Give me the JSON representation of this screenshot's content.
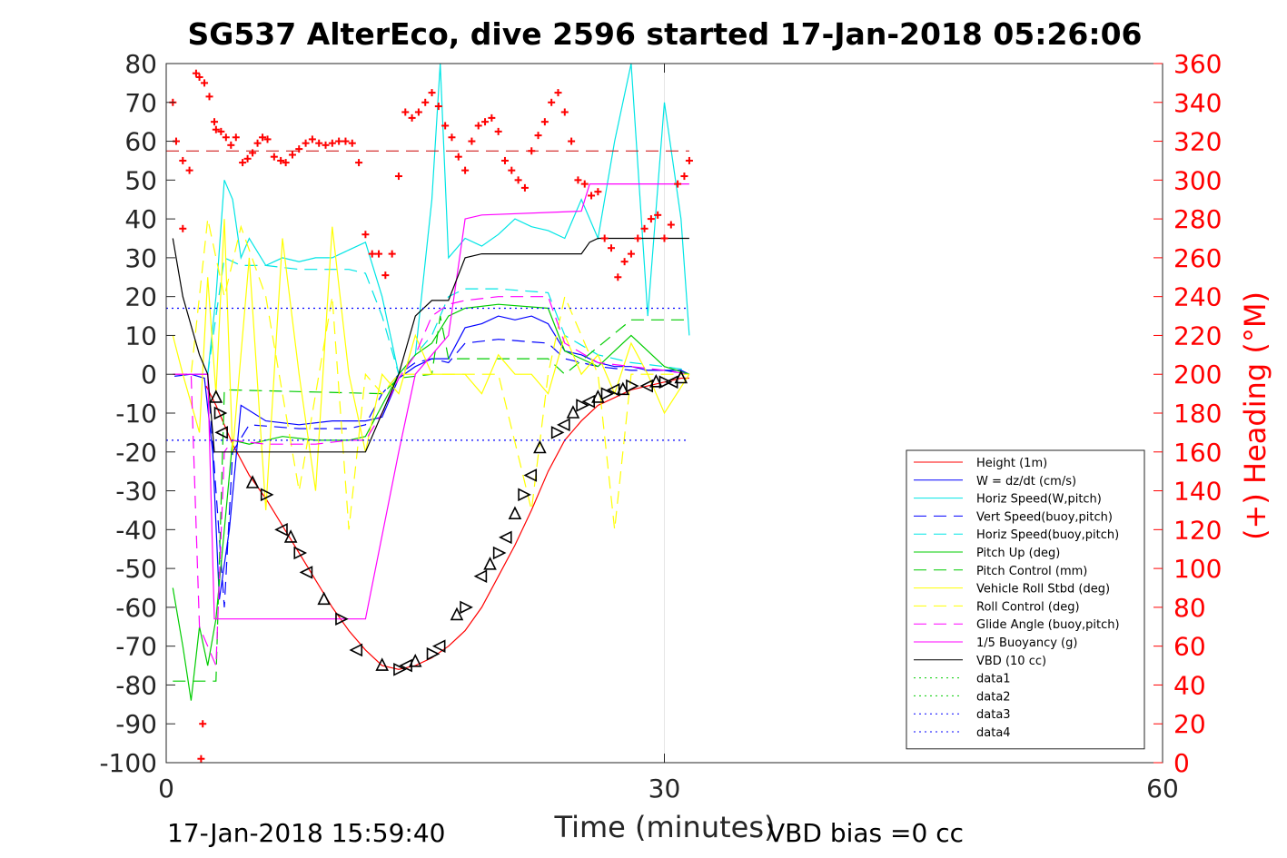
{
  "chart_data": {
    "type": "line",
    "title": "SG537 AlterEco, dive 2596 started 17-Jan-2018 05:26:06",
    "xlabel": "Time (minutes)",
    "ylabel_right": "(+) Heading (°M)",
    "xlim": [
      0,
      60
    ],
    "ylim": [
      -100,
      80
    ],
    "ylim_right": [
      0,
      360
    ],
    "x_ticks": [
      "0",
      "30",
      "60"
    ],
    "y_ticks": [
      "80",
      "70",
      "60",
      "50",
      "40",
      "30",
      "20",
      "10",
      "0",
      "-10",
      "-20",
      "-30",
      "-40",
      "-50",
      "-60",
      "-70",
      "-80",
      "-90",
      "-100"
    ],
    "y_ticks_right": [
      "360",
      "340",
      "320",
      "300",
      "280",
      "260",
      "240",
      "220",
      "200",
      "180",
      "160",
      "140",
      "120",
      "100",
      "80",
      "60",
      "40",
      "20",
      "0"
    ],
    "grid": "x only at 30",
    "legend_position": "bottom-right inside",
    "footer_left": "17-Jan-2018 15:59:40",
    "footer_right": "VBD bias =0 cc",
    "series": [
      {
        "name": "Height (1m)",
        "color": "#ff0000",
        "style": "solid",
        "x": [
          2.4,
          3.0,
          4.0,
          5.0,
          6.0,
          7.0,
          8.0,
          9.0,
          10.0,
          11.0,
          12.0,
          13.0,
          14.0,
          15.0,
          16.0,
          17.0,
          18.0,
          19.0,
          20.0,
          21.0,
          22.0,
          23.0,
          24.0,
          25.0,
          26.0,
          27.0,
          28.0,
          29.0,
          30.0,
          31.0,
          31.5
        ],
        "values": [
          -3,
          -8,
          -18,
          -26,
          -32,
          -39,
          -46,
          -53,
          -60,
          -66,
          -71,
          -75,
          -76,
          -75,
          -73,
          -70,
          -66,
          -60,
          -52,
          -44,
          -35,
          -25,
          -17,
          -12,
          -8,
          -6,
          -4,
          -3,
          -2,
          -1,
          -1
        ]
      },
      {
        "name": "W = dz/dt (cm/s)",
        "color": "#0000ff",
        "style": "solid",
        "x": [
          0.5,
          1.5,
          2.3,
          2.8,
          3.2,
          3.8,
          4.5,
          6,
          8,
          10,
          12,
          13,
          14,
          15,
          16,
          17,
          18,
          19,
          20,
          21,
          22,
          23,
          24,
          25,
          26,
          27,
          28,
          29,
          30,
          31,
          31.5
        ],
        "values": [
          -0.5,
          0,
          -1,
          -20,
          -58,
          -40,
          -8,
          -12,
          -13,
          -12,
          -12,
          -11,
          -1,
          2,
          4,
          4,
          12,
          13,
          15,
          14,
          15,
          13,
          6,
          5,
          3,
          2,
          2,
          1,
          1,
          1,
          0
        ]
      },
      {
        "name": "Horiz Speed(W,pitch)",
        "color": "#00e5e5",
        "style": "solid",
        "x": [
          2.5,
          3.0,
          3.5,
          4.0,
          4.5,
          5,
          6,
          7,
          8,
          9,
          10,
          11,
          12,
          13,
          14,
          15,
          16,
          16.5,
          17,
          18,
          19,
          20,
          21,
          22,
          23,
          24,
          25,
          26,
          27,
          28,
          29,
          30,
          31,
          31.5
        ],
        "values": [
          0,
          20,
          50,
          45,
          30,
          35,
          28,
          30,
          29,
          30,
          30,
          32,
          34,
          20,
          0,
          5,
          45,
          80,
          30,
          35,
          33,
          36,
          40,
          38,
          37,
          35,
          45,
          35,
          60,
          80,
          15,
          70,
          40,
          10
        ]
      },
      {
        "name": "Vert Speed(buoy,pitch)",
        "color": "#0000ff",
        "style": "dashed",
        "x": [
          0.5,
          2.5,
          3.0,
          3.5,
          4.0,
          5,
          8,
          11,
          12,
          13,
          14,
          15,
          16,
          17,
          18,
          20,
          23,
          24,
          26,
          28,
          30,
          31.5
        ],
        "values": [
          0,
          0,
          -30,
          -60,
          -20,
          -13,
          -14,
          -14,
          -13,
          -5,
          0,
          3,
          4,
          3,
          8,
          9,
          8,
          4,
          2,
          1,
          1,
          0
        ]
      },
      {
        "name": "Horiz Speed(buoy,pitch)",
        "color": "#00e5e5",
        "style": "dashed",
        "x": [
          2.5,
          3.5,
          4.5,
          6,
          8,
          11,
          12,
          13,
          14,
          15,
          16,
          17,
          18,
          20,
          23,
          24,
          26,
          28,
          30,
          31.5
        ],
        "values": [
          0,
          30,
          28,
          28,
          27,
          27,
          26,
          15,
          0,
          5,
          10,
          20,
          22,
          22,
          21,
          10,
          5,
          3,
          2,
          1
        ]
      },
      {
        "name": "Pitch Up (deg)",
        "color": "#00cc00",
        "style": "solid",
        "x": [
          0.4,
          1.0,
          1.5,
          2.0,
          2.5,
          3.0,
          3.5,
          4.0,
          5,
          7,
          9,
          11,
          12,
          13,
          14,
          15,
          16,
          17,
          18,
          20,
          23,
          24,
          26,
          28,
          30,
          31.5
        ],
        "values": [
          -55,
          -70,
          -84,
          -65,
          -75,
          -63,
          -40,
          -17,
          -18,
          -16,
          -17,
          -17,
          -16,
          -8,
          0,
          5,
          8,
          15,
          17,
          18,
          17,
          6,
          2,
          10,
          2,
          0
        ]
      },
      {
        "name": "Pitch Control (mm)",
        "color": "#00cc00",
        "style": "dashed",
        "x": [
          0.4,
          3.0,
          3.5,
          13,
          14,
          16,
          16.5,
          17,
          23,
          24,
          28,
          31.5
        ],
        "values": [
          -79,
          -79,
          -4,
          -5,
          -1,
          0,
          15,
          4,
          4,
          0,
          14,
          14
        ]
      },
      {
        "name": "Vehicle Roll Stbd (deg)",
        "color": "#ffff00",
        "style": "solid",
        "x": [
          0.4,
          1,
          2,
          2.5,
          3,
          3.5,
          4,
          5,
          6,
          7,
          8,
          9,
          10,
          11,
          12,
          13,
          14,
          15,
          16,
          17,
          18,
          19,
          20,
          21,
          22,
          23,
          24,
          25,
          26,
          27,
          28,
          29,
          30,
          31.5
        ],
        "values": [
          10,
          0,
          -15,
          25,
          -5,
          40,
          -20,
          30,
          -35,
          35,
          0,
          -30,
          38,
          0,
          -20,
          0,
          -5,
          10,
          0,
          0,
          0,
          -5,
          5,
          0,
          0,
          -5,
          10,
          0,
          5,
          -5,
          8,
          0,
          -10,
          0
        ]
      },
      {
        "name": "Roll Control (deg)",
        "color": "#ffff00",
        "style": "dashed",
        "x": [
          0.4,
          1.5,
          2.5,
          3.5,
          4.5,
          6,
          8,
          10,
          11,
          12,
          13,
          14,
          16,
          18,
          20,
          22,
          23,
          24,
          26,
          27,
          28,
          30,
          31.5
        ],
        "values": [
          0,
          0,
          40,
          20,
          38,
          20,
          -30,
          20,
          -40,
          0,
          -5,
          0,
          0,
          0,
          0,
          -35,
          0,
          20,
          0,
          -40,
          0,
          0,
          0
        ]
      },
      {
        "name": "Glide Angle (buoy,pitch)",
        "color": "#ff00ff",
        "style": "dashed",
        "x": [
          0.4,
          1.5,
          2.0,
          2.5,
          3.0,
          3.5,
          4,
          6,
          9,
          11,
          12,
          13,
          14,
          15,
          16,
          17,
          18,
          20,
          23,
          24,
          26,
          28,
          30,
          31.5
        ],
        "values": [
          0,
          0,
          -65,
          -70,
          -75,
          -20,
          -17,
          -18,
          -18,
          -17,
          -17,
          -10,
          -1,
          5,
          15,
          18,
          19,
          20,
          20,
          8,
          3,
          2,
          1,
          0
        ]
      },
      {
        "name": "1/5 Buoyancy (g)",
        "color": "#ff00ff",
        "style": "solid",
        "x": [
          0.4,
          2.5,
          2.9,
          12,
          14,
          15,
          16,
          17,
          18,
          19,
          25,
          25.5,
          26,
          31.5
        ],
        "values": [
          0,
          0,
          -63,
          -63,
          -20,
          0,
          5,
          10,
          40,
          41,
          42,
          49,
          49,
          49
        ]
      },
      {
        "name": "VBD (10 cc)",
        "color": "#000000",
        "style": "solid",
        "x": [
          0.4,
          1,
          2,
          2.5,
          2.9,
          12,
          14,
          15,
          16,
          17,
          18,
          19,
          25,
          25.5,
          26,
          31.5
        ],
        "values": [
          35,
          20,
          5,
          0,
          -20,
          -20,
          0,
          15,
          19,
          19,
          30,
          31,
          31,
          34,
          35,
          35
        ]
      },
      {
        "name": "data1",
        "color": "#00cc00",
        "style": "dotted",
        "x": [],
        "values": []
      },
      {
        "name": "data2",
        "color": "#00cc00",
        "style": "dotted",
        "x": [],
        "values": []
      },
      {
        "name": "data3",
        "color": "#0000ff",
        "style": "dotted",
        "x": [
          0,
          31.5
        ],
        "values": [
          17,
          17
        ]
      },
      {
        "name": "data4",
        "color": "#0000ff",
        "style": "dotted",
        "x": [
          0,
          31.5
        ],
        "values": [
          -17,
          -17
        ]
      }
    ],
    "heading_reference": {
      "color": "#cc0000",
      "style": "dashed",
      "value_right": 315
    },
    "heading_points": {
      "color": "#ff0000",
      "marker": "+",
      "x": [
        0.4,
        0.6,
        1.0,
        1.4,
        1.8,
        2.0,
        2.3,
        2.6,
        2.9,
        3.0,
        3.3,
        3.6,
        3.9,
        4.2,
        4.6,
        4.9,
        5.2,
        5.5,
        5.8,
        6.1,
        6.5,
        6.9,
        7.2,
        7.6,
        8.0,
        8.4,
        8.8,
        9.2,
        9.6,
        10.0,
        10.4,
        10.8,
        11.2,
        11.6,
        12.0,
        12.4,
        12.8,
        13.2,
        13.6,
        14.0,
        14.4,
        14.8,
        15.2,
        15.6,
        16.0,
        16.4,
        16.8,
        17.2,
        17.6,
        18.0,
        18.4,
        18.8,
        19.2,
        19.6,
        20.0,
        20.4,
        20.8,
        21.2,
        21.6,
        22.0,
        22.4,
        22.8,
        23.2,
        23.6,
        24.0,
        24.4,
        24.8,
        25.2,
        25.6,
        26.0,
        26.4,
        26.8,
        27.2,
        27.6,
        28.0,
        28.4,
        28.8,
        29.2,
        29.6,
        30.0,
        30.4,
        30.8,
        31.2,
        31.5,
        2.2,
        2.1,
        1.0
      ],
      "values": [
        340,
        320,
        310,
        305,
        355,
        353,
        350,
        343,
        330,
        326,
        325,
        322,
        318,
        322,
        309,
        311,
        314,
        319,
        322,
        321,
        312,
        310,
        309,
        313,
        316,
        319,
        321,
        319,
        318,
        319,
        320,
        320,
        319,
        309,
        272,
        262,
        262,
        251,
        262,
        302,
        335,
        332,
        335,
        340,
        345,
        338,
        328,
        322,
        312,
        305,
        320,
        328,
        330,
        332,
        325,
        310,
        305,
        300,
        296,
        315,
        323,
        330,
        340,
        345,
        335,
        320,
        300,
        298,
        292,
        294,
        270,
        265,
        250,
        258,
        262,
        270,
        275,
        280,
        282,
        270,
        277,
        298,
        302,
        310,
        20,
        2,
        275
      ]
    },
    "depth_markers": {
      "color": "#000000",
      "marker": "triangle",
      "x": [
        3.0,
        3.2,
        3.4,
        5.2,
        6.0,
        7.0,
        7.5,
        8.0,
        8.5,
        9.5,
        10.5,
        11.5,
        13.0,
        14.0,
        14.5,
        15.0,
        16.0,
        16.5,
        17.5,
        18.0,
        19.0,
        19.5,
        20.0,
        20.5,
        21.0,
        21.5,
        22.0,
        22.5,
        23.5,
        24.0,
        24.5,
        25.0,
        25.5,
        26.0,
        26.5,
        27.0,
        27.5,
        28.0,
        29.0,
        29.5,
        30.0,
        30.5,
        31.0
      ],
      "values": [
        -6,
        -10,
        -15,
        -28,
        -31,
        -40,
        -42,
        -46,
        -51,
        -58,
        -63,
        -71,
        -75,
        -76,
        -75,
        -74,
        -72,
        -70,
        -62,
        -60,
        -52,
        -49,
        -46,
        -42,
        -36,
        -31,
        -26,
        -19,
        -15,
        -13,
        -10,
        -8,
        -7,
        -6,
        -5,
        -4,
        -4,
        -3,
        -3,
        -2,
        -2,
        -2,
        -1
      ]
    }
  }
}
